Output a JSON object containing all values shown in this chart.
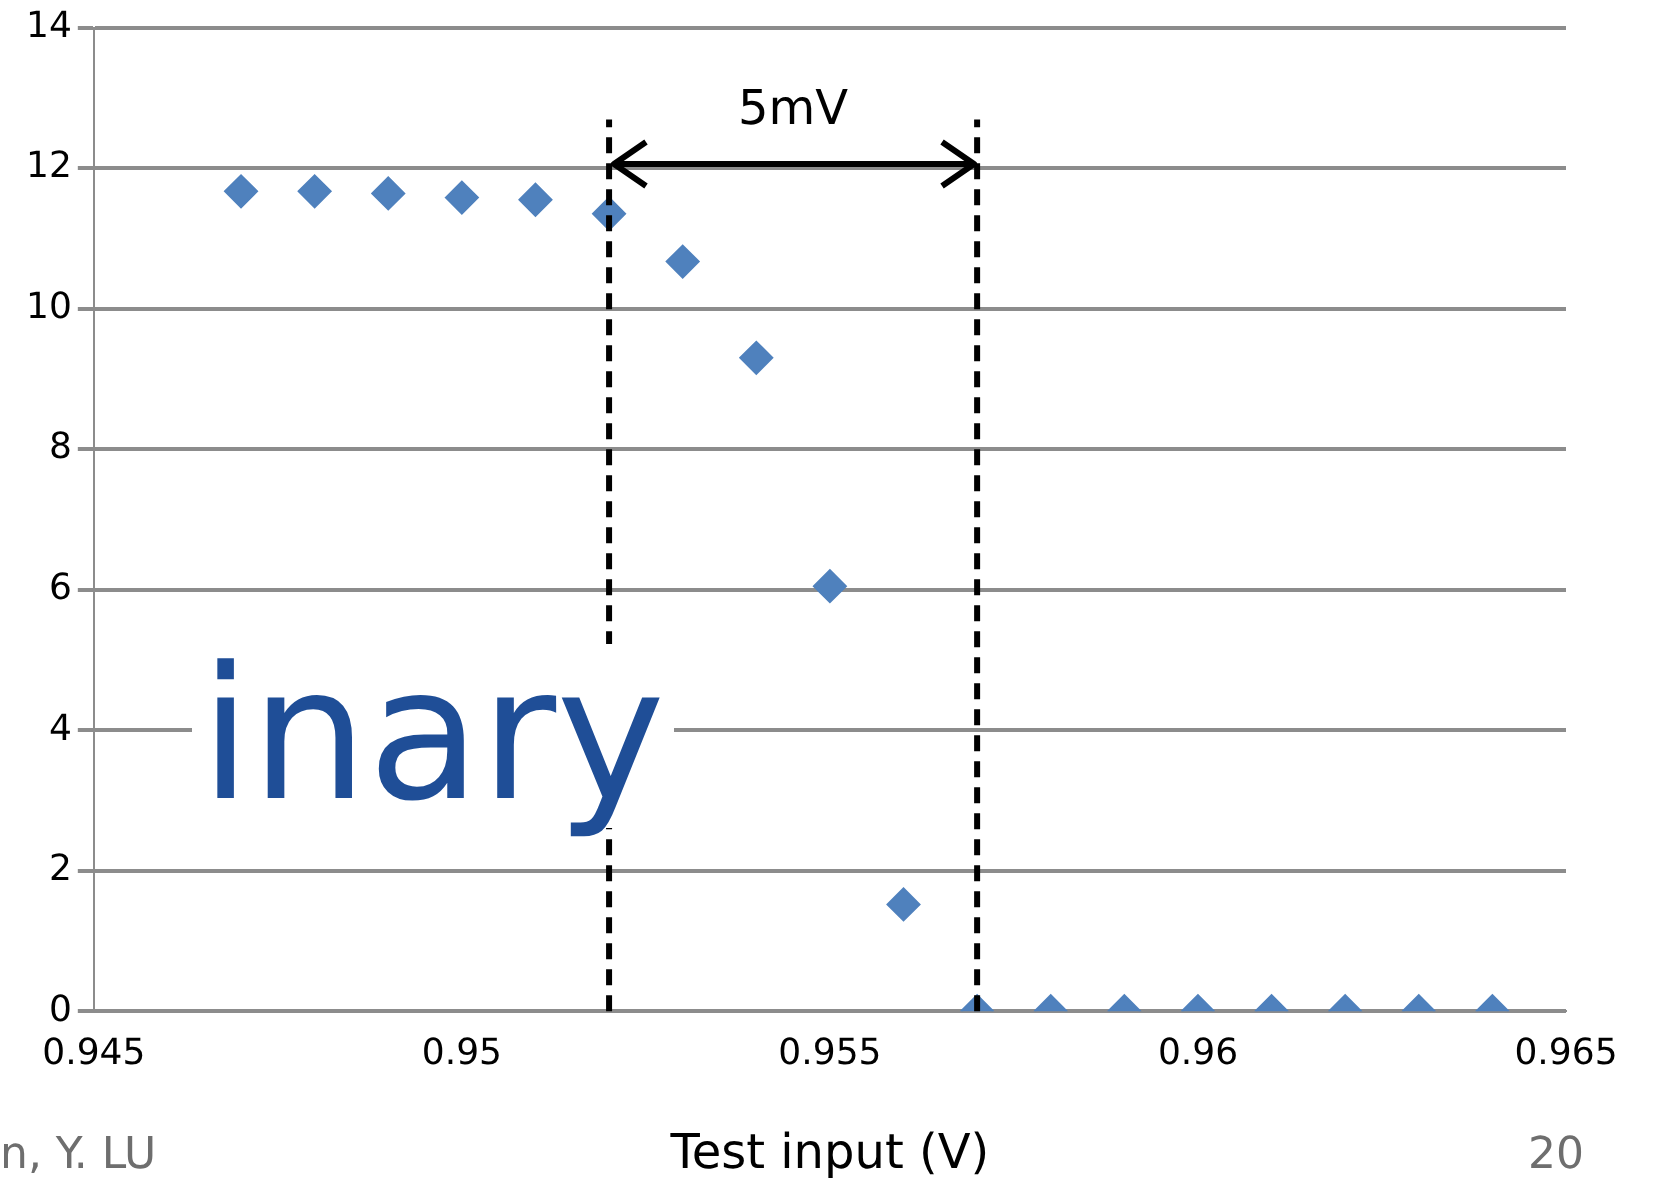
{
  "chart_data": {
    "type": "scatter",
    "xlabel": "Test input (V)",
    "x": [
      0.947,
      0.948,
      0.949,
      0.95,
      0.951,
      0.952,
      0.953,
      0.954,
      0.955,
      0.956,
      0.957,
      0.958,
      0.959,
      0.96,
      0.961,
      0.962,
      0.963,
      0.964
    ],
    "series": [
      {
        "color": "#4f81bd",
        "values": [
          11.67,
          11.67,
          11.64,
          11.58,
          11.55,
          11.35,
          10.67,
          9.3,
          6.05,
          1.52,
          0,
          0,
          0,
          0,
          0,
          0,
          0,
          0
        ]
      }
    ],
    "xlim": [
      0.945,
      0.965
    ],
    "xticks": [
      0.945,
      0.95,
      0.955,
      0.96,
      0.965
    ],
    "ylim": [
      0,
      14
    ],
    "yticks": [
      0,
      2,
      4,
      6,
      8,
      10,
      12,
      14
    ],
    "grid": "y",
    "legend": false,
    "marker": "diamond",
    "ref_lines": [
      {
        "axis": "x",
        "value": 0.952,
        "color": "#000000",
        "line_style": "dashed"
      },
      {
        "axis": "x",
        "value": 0.957,
        "color": "#000000",
        "line_style": "dashed"
      }
    ],
    "annotations": [
      "5mV",
      "inary",
      "n, Y. LU",
      "20"
    ]
  }
}
